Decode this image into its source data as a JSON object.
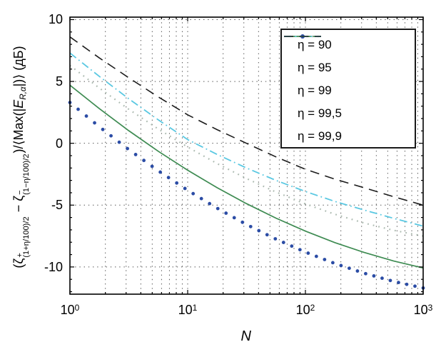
{
  "figure": {
    "background": "#ffffff"
  },
  "chart_data": {
    "type": "line",
    "x_scale": "log",
    "xlabel": "N",
    "ylabel_plain": "(ζ+(1+η/100)/2 − ζ−(1−η/100)/2)/⟨Max(|E R,α|)⟩ (дБ)",
    "ylabel_segments": [
      {
        "t": "(ζ"
      },
      {
        "s": "stack",
        "sup": "+",
        "sub": "(1+η/100)/2"
      },
      {
        "t": " − ζ"
      },
      {
        "s": "stack",
        "sup": "−",
        "sub": "(1−η/100)/2"
      },
      {
        "t": ")/⟨Max(|"
      },
      {
        "t": "E",
        "s": "i"
      },
      {
        "t": "R,α",
        "s": "subi"
      },
      {
        "t": "|)⟩ (дБ)"
      }
    ],
    "xlim": [
      1,
      1000
    ],
    "ylim": [
      -12.2,
      10.2
    ],
    "xticks": [
      1,
      10,
      100,
      1000
    ],
    "yticks": [
      10,
      5,
      0,
      -5,
      -10
    ],
    "grid": "dotted gridlines at 5-dB steps and at log minor/major x positions",
    "legend_position": "top-right",
    "x": [
      1,
      1.78,
      3.16,
      5.62,
      10,
      17.8,
      31.6,
      56.2,
      100,
      178,
      316,
      562,
      1000
    ],
    "series": [
      {
        "id": "eta-90",
        "name": "η = 90",
        "style": "dots",
        "color": "#2b4ca5",
        "values": [
          3.3,
          1.33,
          -0.51,
          -2.22,
          -3.8,
          -5.25,
          -6.57,
          -7.75,
          -8.8,
          -9.72,
          -10.51,
          -11.17,
          -11.7
        ]
      },
      {
        "id": "eta-95",
        "name": "η = 95",
        "style": "solid",
        "color": "#3e8b52",
        "values": [
          4.7,
          2.8,
          1.02,
          -0.64,
          -2.18,
          -3.59,
          -4.88,
          -6.05,
          -7.1,
          -8.03,
          -8.83,
          -9.52,
          -10.08
        ]
      },
      {
        "id": "eta-99",
        "name": "η = 99",
        "style": "dotted",
        "color": "#aebcb2",
        "values": [
          6.3,
          4.46,
          2.75,
          1.16,
          -0.3,
          -1.64,
          -2.85,
          -3.94,
          -4.9,
          -5.74,
          -6.45,
          -7.04,
          -7.5
        ]
      },
      {
        "id": "eta-99-5",
        "name": "η = 99,5",
        "style": "dashdot",
        "color": "#5ac8e2",
        "values": [
          7.3,
          5.4,
          3.6,
          1.9,
          0.3,
          -0.9,
          -2.0,
          -3.0,
          -3.9,
          -4.7,
          -5.4,
          -6.07,
          -6.7
        ]
      },
      {
        "id": "eta-99-9",
        "name": "η = 99,9",
        "style": "dashed",
        "color": "#1c1c1c",
        "values": [
          8.6,
          6.9,
          5.3,
          3.75,
          2.3,
          1.1,
          0.0,
          -1.1,
          -2.1,
          -2.9,
          -3.6,
          -4.32,
          -5.0
        ]
      }
    ],
    "marker_count_dots_series": 44,
    "colors": {
      "axis": "#000000",
      "grid": "#525252",
      "legend_border": "#1a1a1a"
    }
  }
}
